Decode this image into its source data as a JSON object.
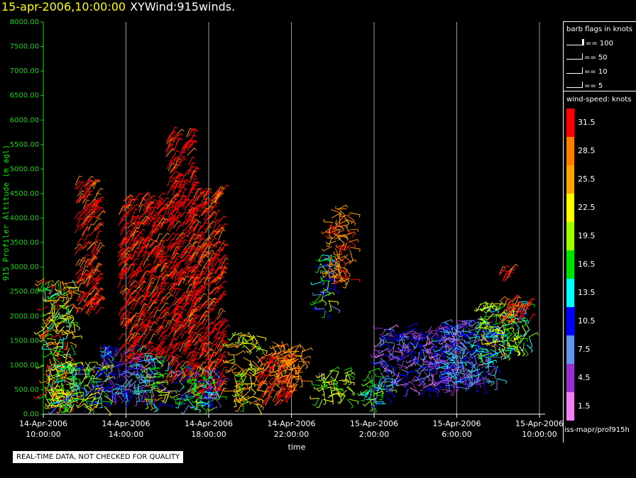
{
  "title": {
    "date": "15-apr-2006,10:00:00",
    "name": "XYWind:915winds."
  },
  "legend": {
    "flags_title": "barb flags in knots",
    "flags": [
      "== 100",
      "== 50",
      "== 10",
      "== 5"
    ],
    "speed_title": "wind-speed: knots",
    "scale_labels": [
      "31.5",
      "28.5",
      "25.5",
      "22.5",
      "19.5",
      "16.5",
      "13.5",
      "10.5",
      "7.5",
      "4.5",
      "1.5"
    ],
    "scale_colors": [
      "#ff0000",
      "#ff8000",
      "#ffa500",
      "#ffff00",
      "#a0ff00",
      "#00e000",
      "#00ffff",
      "#0000ff",
      "#6495ed",
      "#9932cc",
      "#ee82ee"
    ]
  },
  "footer_id": "iss-mapr/prof915h",
  "warning": "REAL-TIME DATA, NOT CHECKED FOR QUALITY",
  "chart_data": {
    "type": "scatter",
    "xlabel": "time",
    "ylabel": "915 Profiler Altitude (m agl)",
    "ylim": [
      0,
      8000
    ],
    "x_range_hours": [
      0,
      24
    ],
    "yticks": [
      "0.00",
      "500.00",
      "1000.00",
      "1500.00",
      "2000.00",
      "2500.00",
      "3000.00",
      "3500.00",
      "4000.00",
      "4500.00",
      "5000.00",
      "5500.00",
      "6000.00",
      "6500.00",
      "7000.00",
      "7500.00",
      "8000.00"
    ],
    "xticks": [
      {
        "date": "14-Apr-2006",
        "time": "10:00:00"
      },
      {
        "date": "14-Apr-2006",
        "time": "14:00:00"
      },
      {
        "date": "14-Apr-2006",
        "time": "18:00:00"
      },
      {
        "date": "14-Apr-2006",
        "time": "22:00:00"
      },
      {
        "date": "15-Apr-2006",
        "time": "2:00:00"
      },
      {
        "date": "15-Apr-2006",
        "time": "6:00:00"
      },
      {
        "date": "15-Apr-2006",
        "time": "10:00:00"
      }
    ],
    "grid": true,
    "clusters": [
      {
        "t0": 0.0,
        "t1": 1.5,
        "hlo": 150,
        "hhi": 2800,
        "speed_lo": 13,
        "speed_hi": 32
      },
      {
        "t0": 0.2,
        "t1": 3.0,
        "hlo": 150,
        "hhi": 1100,
        "speed_lo": 8,
        "speed_hi": 26
      },
      {
        "t0": 1.5,
        "t1": 2.6,
        "hlo": 2000,
        "hhi": 4700,
        "speed_lo": 28,
        "speed_hi": 33
      },
      {
        "t0": 2.8,
        "t1": 4.8,
        "hlo": 300,
        "hhi": 1400,
        "speed_lo": 4,
        "speed_hi": 14
      },
      {
        "t0": 3.6,
        "t1": 5.8,
        "hlo": 1000,
        "hhi": 4400,
        "speed_lo": 29,
        "speed_hi": 35
      },
      {
        "t0": 4.8,
        "t1": 6.2,
        "hlo": 200,
        "hhi": 1200,
        "speed_lo": 4,
        "speed_hi": 26
      },
      {
        "t0": 5.9,
        "t1": 7.2,
        "hlo": 600,
        "hhi": 5700,
        "speed_lo": 29,
        "speed_hi": 35
      },
      {
        "t0": 7.0,
        "t1": 8.6,
        "hlo": 300,
        "hhi": 4500,
        "speed_lo": 28,
        "speed_hi": 35
      },
      {
        "t0": 6.5,
        "t1": 8.5,
        "hlo": 150,
        "hhi": 1000,
        "speed_lo": 4,
        "speed_hi": 20
      },
      {
        "t0": 9.2,
        "t1": 10.4,
        "hlo": 200,
        "hhi": 1700,
        "speed_lo": 17,
        "speed_hi": 30
      },
      {
        "t0": 10.3,
        "t1": 12.0,
        "hlo": 150,
        "hhi": 1100,
        "speed_lo": 28,
        "speed_hi": 34
      },
      {
        "t0": 11.0,
        "t1": 12.6,
        "hlo": 600,
        "hhi": 1500,
        "speed_lo": 24,
        "speed_hi": 30
      },
      {
        "t0": 13.3,
        "t1": 14.0,
        "hlo": 2100,
        "hhi": 3300,
        "speed_lo": 7,
        "speed_hi": 22
      },
      {
        "t0": 13.8,
        "t1": 14.9,
        "hlo": 2700,
        "hhi": 4200,
        "speed_lo": 25,
        "speed_hi": 31
      },
      {
        "t0": 13.3,
        "t1": 14.8,
        "hlo": 300,
        "hhi": 900,
        "speed_lo": 16,
        "speed_hi": 24
      },
      {
        "t0": 15.6,
        "t1": 16.6,
        "hlo": 200,
        "hhi": 900,
        "speed_lo": 10,
        "speed_hi": 20
      },
      {
        "t0": 16.2,
        "t1": 20.0,
        "hlo": 500,
        "hhi": 1800,
        "speed_lo": 2,
        "speed_hi": 12
      },
      {
        "t0": 19.0,
        "t1": 22.0,
        "hlo": 600,
        "hhi": 1900,
        "speed_lo": 4,
        "speed_hi": 14
      },
      {
        "t0": 21.0,
        "t1": 23.5,
        "hlo": 1200,
        "hhi": 2300,
        "speed_lo": 10,
        "speed_hi": 24
      },
      {
        "t0": 22.0,
        "t1": 23.5,
        "hlo": 1800,
        "hhi": 2300,
        "speed_lo": 27,
        "speed_hi": 33
      },
      {
        "t0": 22.0,
        "t1": 22.6,
        "hlo": 2700,
        "hhi": 3000,
        "speed_lo": 29,
        "speed_hi": 32
      }
    ]
  }
}
